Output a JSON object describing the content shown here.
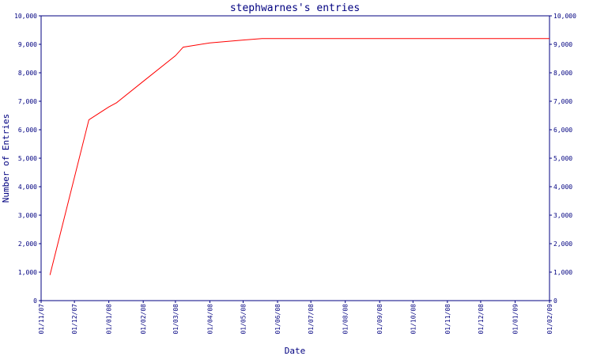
{
  "chart_data": {
    "type": "line",
    "title": "stephwarnes's entries",
    "xlabel": "Date",
    "ylabel": "Number of Entries",
    "ylim": [
      0,
      10000
    ],
    "y_ticks": [
      "0",
      "1,000",
      "2,000",
      "3,000",
      "4,000",
      "5,000",
      "6,000",
      "7,000",
      "8,000",
      "9,000",
      "10,000"
    ],
    "x_ticks": [
      "01/11/07",
      "01/12/07",
      "01/01/08",
      "01/02/08",
      "01/03/08",
      "01/04/08",
      "01/05/08",
      "01/06/08",
      "01/07/08",
      "01/08/08",
      "01/09/08",
      "01/10/08",
      "01/11/08",
      "01/12/08",
      "01/01/09",
      "01/02/09"
    ],
    "grid": false,
    "series_color": "#ff0000",
    "axis_color": "#000080",
    "series": [
      {
        "points": [
          {
            "x": "2007-11-09",
            "y": 900
          },
          {
            "x": "2007-12-14",
            "y": 6350
          },
          {
            "x": "2008-01-01",
            "y": 6800
          },
          {
            "x": "2008-01-08",
            "y": 6950
          },
          {
            "x": "2008-02-01",
            "y": 7700
          },
          {
            "x": "2008-03-01",
            "y": 8600
          },
          {
            "x": "2008-03-08",
            "y": 8900
          },
          {
            "x": "2008-04-01",
            "y": 9050
          },
          {
            "x": "2008-05-01",
            "y": 9150
          },
          {
            "x": "2008-05-18",
            "y": 9200
          },
          {
            "x": "2009-02-01",
            "y": 9200
          }
        ]
      }
    ]
  }
}
